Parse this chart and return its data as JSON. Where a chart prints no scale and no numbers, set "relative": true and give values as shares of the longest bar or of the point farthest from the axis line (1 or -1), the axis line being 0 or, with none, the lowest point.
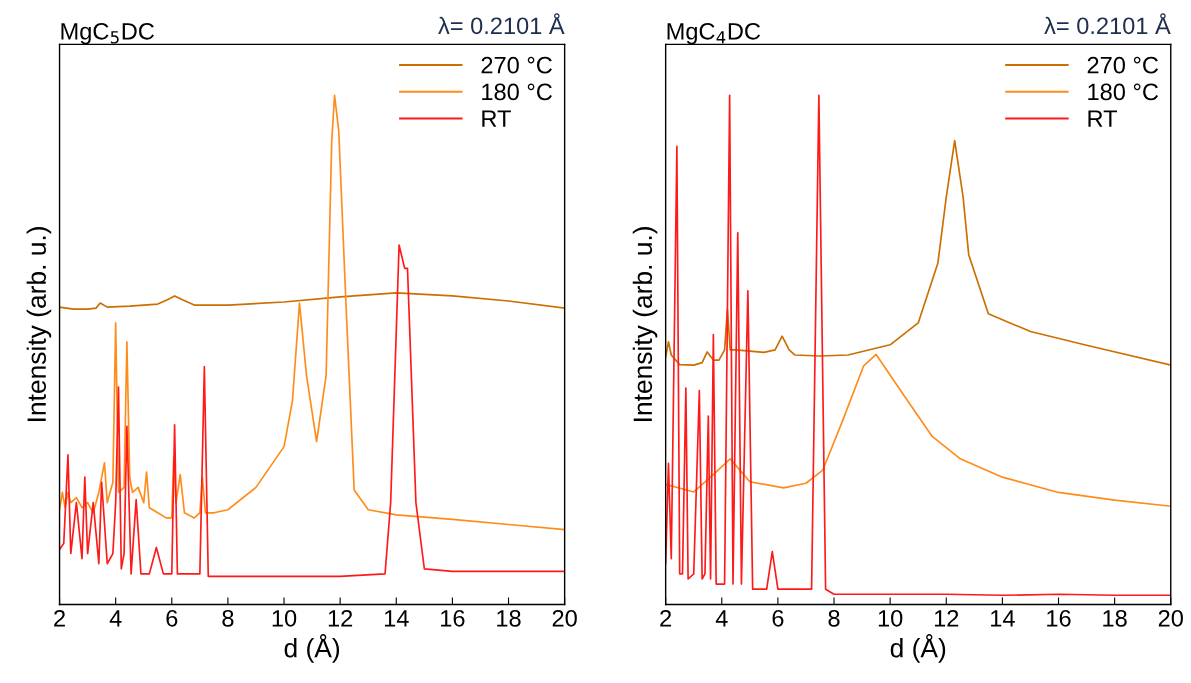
{
  "chart_data": [
    {
      "type": "line",
      "title": "MgC$_{5}$DC",
      "annotations": [
        "λ= 0.2101 Å"
      ],
      "xlabel": "d (Å)",
      "ylabel": "Intensity (arb. u.)",
      "relative": true,
      "xlim": [
        2,
        20
      ],
      "xticks": [
        2,
        4,
        6,
        8,
        10,
        12,
        14,
        16,
        18,
        20
      ],
      "legend": "top right",
      "grid": false,
      "series": [
        {
          "name": "270 °C",
          "color": "#cc6e00",
          "x": [
            2,
            2.5,
            3.0,
            3.3,
            3.45,
            3.7,
            4.5,
            5.5,
            5.9,
            6.1,
            6.4,
            6.8,
            8,
            10,
            12,
            14,
            16,
            18,
            20
          ],
          "values": [
            0.584,
            0.58,
            0.58,
            0.582,
            0.592,
            0.584,
            0.586,
            0.59,
            0.6,
            0.606,
            0.598,
            0.588,
            0.588,
            0.594,
            0.604,
            0.612,
            0.606,
            0.596,
            0.582
          ]
        },
        {
          "name": "180 °C",
          "color": "#ff8c1a",
          "x": [
            2,
            2.1,
            2.2,
            2.3,
            2.4,
            2.6,
            2.8,
            3.0,
            3.2,
            3.4,
            3.6,
            3.7,
            3.9,
            4.0,
            4.1,
            4.3,
            4.4,
            4.5,
            4.6,
            4.8,
            5.0,
            5.1,
            5.2,
            5.5,
            5.8,
            6.0,
            6.07,
            6.15,
            6.3,
            6.45,
            6.8,
            7.0,
            7.09,
            7.2,
            7.5,
            8,
            9,
            10,
            10.3,
            10.55,
            10.8,
            11.16,
            11.5,
            11.7,
            11.8,
            11.95,
            12.2,
            12.5,
            13,
            14,
            16,
            18,
            20
          ],
          "values": [
            0.186,
            0.22,
            0.19,
            0.22,
            0.2,
            0.21,
            0.19,
            0.2,
            0.18,
            0.22,
            0.278,
            0.2,
            0.24,
            0.553,
            0.22,
            0.23,
            0.516,
            0.25,
            0.22,
            0.23,
            0.2,
            0.26,
            0.19,
            0.18,
            0.17,
            0.17,
            0.29,
            0.2,
            0.255,
            0.18,
            0.17,
            0.18,
            0.25,
            0.18,
            0.18,
            0.186,
            0.23,
            0.31,
            0.4,
            0.592,
            0.45,
            0.32,
            0.45,
            0.91,
            1.0,
            0.93,
            0.6,
            0.225,
            0.186,
            0.176,
            0.167,
            0.157,
            0.147
          ]
        },
        {
          "name": "RT",
          "color": "#ff1a1a",
          "x": [
            2,
            2.15,
            2.3,
            2.4,
            2.6,
            2.8,
            2.9,
            3.0,
            3.2,
            3.4,
            3.5,
            3.7,
            3.9,
            4.0,
            4.1,
            4.2,
            4.3,
            4.4,
            4.55,
            4.73,
            4.9,
            5.2,
            5.45,
            5.7,
            6.0,
            6.1,
            6.2,
            6.5,
            7.0,
            7.16,
            7.3,
            8,
            10,
            12,
            13.6,
            13.8,
            14.1,
            14.3,
            14.4,
            14.7,
            15,
            16,
            18,
            20
          ],
          "values": [
            0.108,
            0.12,
            0.294,
            0.1,
            0.2,
            0.09,
            0.25,
            0.1,
            0.2,
            0.08,
            0.24,
            0.08,
            0.1,
            0.2,
            0.427,
            0.07,
            0.1,
            0.35,
            0.06,
            0.206,
            0.06,
            0.06,
            0.112,
            0.06,
            0.06,
            0.353,
            0.06,
            0.06,
            0.06,
            0.467,
            0.055,
            0.055,
            0.055,
            0.055,
            0.06,
            0.2,
            0.706,
            0.66,
            0.66,
            0.2,
            0.07,
            0.065,
            0.065,
            0.065
          ]
        }
      ]
    },
    {
      "type": "line",
      "title": "MgC$_{4}$DC",
      "annotations": [
        "λ= 0.2101 Å"
      ],
      "xlabel": "d (Å)",
      "ylabel": "Intensity (arb. u.)",
      "relative": true,
      "xlim": [
        2,
        20
      ],
      "xticks": [
        2,
        4,
        6,
        8,
        10,
        12,
        14,
        16,
        18,
        20
      ],
      "legend": "top right",
      "grid": false,
      "series": [
        {
          "name": "270 °C",
          "color": "#cc6e00",
          "x": [
            2,
            2.1,
            2.2,
            2.5,
            3.0,
            3.3,
            3.48,
            3.7,
            3.9,
            4.1,
            4.2,
            4.3,
            4.5,
            5.5,
            5.9,
            6.15,
            6.4,
            6.6,
            7.5,
            8.5,
            10,
            11,
            11.7,
            12.0,
            12.3,
            12.6,
            12.8,
            13.5,
            15,
            17,
            20
          ],
          "values": [
            0.486,
            0.516,
            0.49,
            0.471,
            0.47,
            0.475,
            0.496,
            0.48,
            0.48,
            0.5,
            0.58,
            0.5,
            0.5,
            0.495,
            0.5,
            0.527,
            0.5,
            0.49,
            0.488,
            0.49,
            0.51,
            0.553,
            0.67,
            0.8,
            0.911,
            0.8,
            0.687,
            0.571,
            0.536,
            0.509,
            0.47
          ]
        },
        {
          "name": "180 °C",
          "color": "#ff8c1a",
          "x": [
            2,
            3,
            3.6,
            4.3,
            5,
            6.2,
            7,
            7.6,
            8.3,
            9.05,
            9.5,
            10.5,
            11.5,
            12.5,
            14,
            16,
            18,
            20
          ],
          "values": [
            0.236,
            0.221,
            0.25,
            0.286,
            0.241,
            0.229,
            0.238,
            0.264,
            0.36,
            0.468,
            0.491,
            0.41,
            0.33,
            0.286,
            0.25,
            0.22,
            0.205,
            0.193
          ]
        },
        {
          "name": "RT",
          "color": "#ff1a1a",
          "x": [
            2,
            2.1,
            2.2,
            2.4,
            2.5,
            2.6,
            2.72,
            2.8,
            3.0,
            3.2,
            3.3,
            3.4,
            3.52,
            3.6,
            3.7,
            3.8,
            4.1,
            4.28,
            4.4,
            4.57,
            4.7,
            4.93,
            5.1,
            5.6,
            5.8,
            6.0,
            7.2,
            7.46,
            7.7,
            8,
            10,
            12,
            14,
            16,
            18,
            20
          ],
          "values": [
            0.08,
            0.277,
            0.09,
            0.9,
            0.06,
            0.06,
            0.425,
            0.05,
            0.06,
            0.42,
            0.05,
            0.06,
            0.37,
            0.05,
            0.53,
            0.04,
            0.04,
            1.0,
            0.04,
            0.73,
            0.04,
            0.616,
            0.03,
            0.03,
            0.104,
            0.03,
            0.03,
            1.0,
            0.03,
            0.02,
            0.02,
            0.02,
            0.018,
            0.02,
            0.018,
            0.018
          ]
        }
      ]
    }
  ]
}
